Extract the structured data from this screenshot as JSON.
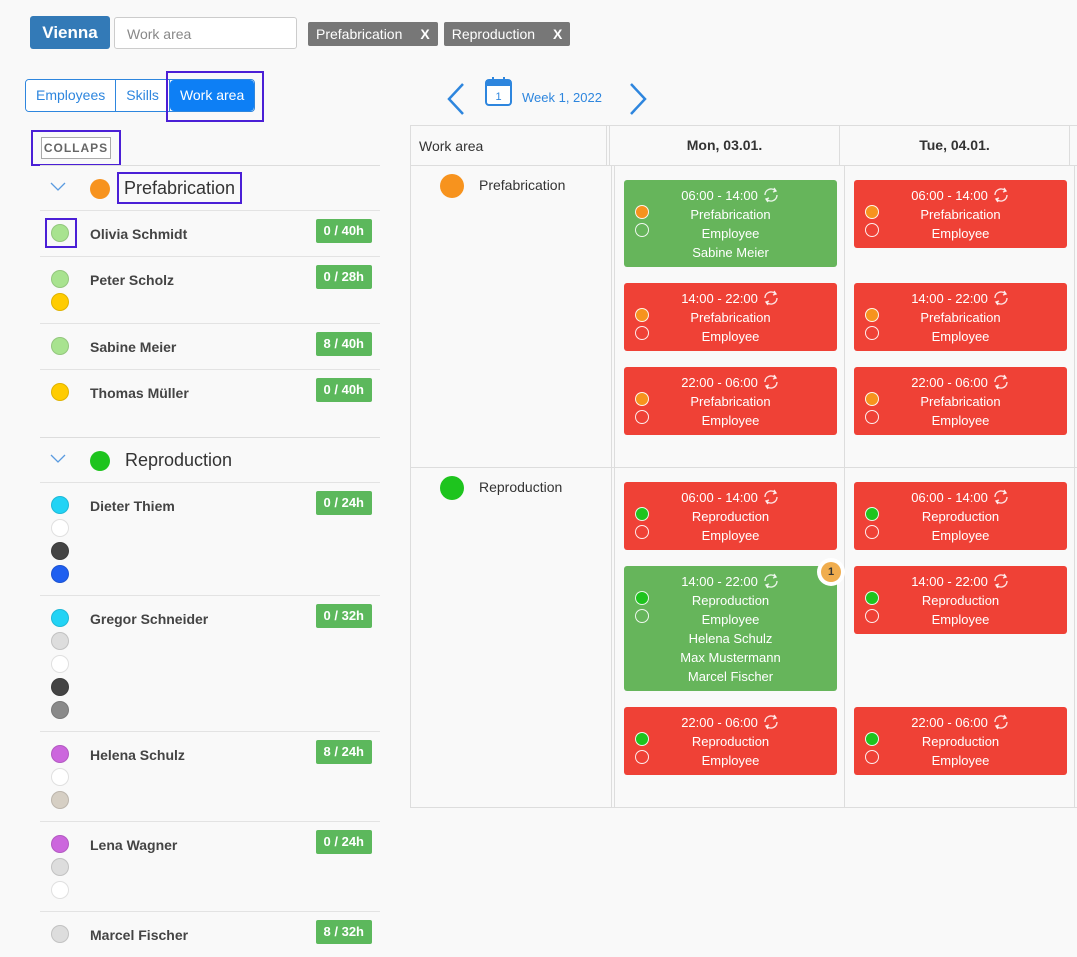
{
  "header": {
    "location": "Vienna",
    "search_placeholder": "Work area",
    "filters": [
      {
        "label": "Prefabrication",
        "remove": "X"
      },
      {
        "label": "Reproduction",
        "remove": "X"
      }
    ]
  },
  "tabs": [
    {
      "label": "Employees",
      "active": false
    },
    {
      "label": "Skills",
      "active": false
    },
    {
      "label": "Work area",
      "active": true
    }
  ],
  "collapse_button": "COLLAPS",
  "week": {
    "calendar_day": "1",
    "label": "Week 1, 2022"
  },
  "groups": [
    {
      "name": "Prefabrication",
      "color": "#f7931e",
      "employees": [
        {
          "name": "Olivia Schmidt",
          "hours": "0 / 40h",
          "dots": [
            "#a8e38f"
          ]
        },
        {
          "name": "Peter Scholz",
          "hours": "0 / 28h",
          "dots": [
            "#a8e38f",
            "#ffcc00"
          ]
        },
        {
          "name": "Sabine Meier",
          "hours": "8 / 40h",
          "dots": [
            "#a8e38f"
          ]
        },
        {
          "name": "Thomas Müller",
          "hours": "0 / 40h",
          "dots": [
            "#ffcc00"
          ]
        }
      ]
    },
    {
      "name": "Reproduction",
      "color": "#1ec41e",
      "employees": [
        {
          "name": "Dieter Thiem",
          "hours": "0 / 24h",
          "dots": [
            "#22d3f5",
            "#ffffff",
            "#444444",
            "#1f5ff0"
          ]
        },
        {
          "name": "Gregor Schneider",
          "hours": "0 / 32h",
          "dots": [
            "#22d3f5",
            "#dddddd",
            "#ffffff",
            "#444444",
            "#8a8a8a"
          ]
        },
        {
          "name": "Helena Schulz",
          "hours": "8 / 24h",
          "dots": [
            "#cc66dd",
            "#ffffff",
            "#d6cfc4"
          ]
        },
        {
          "name": "Lena Wagner",
          "hours": "0 / 24h",
          "dots": [
            "#cc66dd",
            "#dddddd",
            "#ffffff"
          ]
        },
        {
          "name": "Marcel Fischer",
          "hours": "8 / 32h",
          "dots": [
            "#dddddd"
          ]
        }
      ]
    }
  ],
  "schedule": {
    "column_header": "Work area",
    "days": [
      "Mon, 03.01.",
      "Tue, 04.01."
    ],
    "rows": [
      {
        "name": "Prefabrication",
        "color": "#f7931e",
        "slots": [
          [
            {
              "time": "06:00 - 14:00",
              "area": "Prefabrication",
              "role": "Employee",
              "status_color": "#66b55b",
              "staff": [
                "Sabine Meier"
              ]
            },
            {
              "time": "06:00 - 14:00",
              "area": "Prefabrication",
              "role": "Employee",
              "status_color": "#ef4136",
              "staff": []
            }
          ],
          [
            {
              "time": "14:00 - 22:00",
              "area": "Prefabrication",
              "role": "Employee",
              "status_color": "#ef4136",
              "staff": []
            },
            {
              "time": "14:00 - 22:00",
              "area": "Prefabrication",
              "role": "Employee",
              "status_color": "#ef4136",
              "staff": []
            }
          ],
          [
            {
              "time": "22:00 - 06:00",
              "area": "Prefabrication",
              "role": "Employee",
              "status_color": "#ef4136",
              "staff": []
            },
            {
              "time": "22:00 - 06:00",
              "area": "Prefabrication",
              "role": "Employee",
              "status_color": "#ef4136",
              "staff": []
            }
          ]
        ]
      },
      {
        "name": "Reproduction",
        "color": "#1ec41e",
        "slots": [
          [
            {
              "time": "06:00 - 14:00",
              "area": "Reproduction",
              "role": "Employee",
              "status_color": "#ef4136",
              "staff": []
            },
            {
              "time": "06:00 - 14:00",
              "area": "Reproduction",
              "role": "Employee",
              "status_color": "#ef4136",
              "staff": []
            }
          ],
          [
            {
              "time": "14:00 - 22:00",
              "area": "Reproduction",
              "role": "Employee",
              "status_color": "#66b55b",
              "staff": [
                "Helena Schulz",
                "Max Mustermann",
                "Marcel Fischer"
              ],
              "badge": "1"
            },
            {
              "time": "14:00 - 22:00",
              "area": "Reproduction",
              "role": "Employee",
              "status_color": "#ef4136",
              "staff": []
            }
          ],
          [
            {
              "time": "22:00 - 06:00",
              "area": "Reproduction",
              "role": "Employee",
              "status_color": "#ef4136",
              "staff": []
            },
            {
              "time": "22:00 - 06:00",
              "area": "Reproduction",
              "role": "Employee",
              "status_color": "#ef4136",
              "staff": []
            }
          ]
        ]
      }
    ]
  }
}
